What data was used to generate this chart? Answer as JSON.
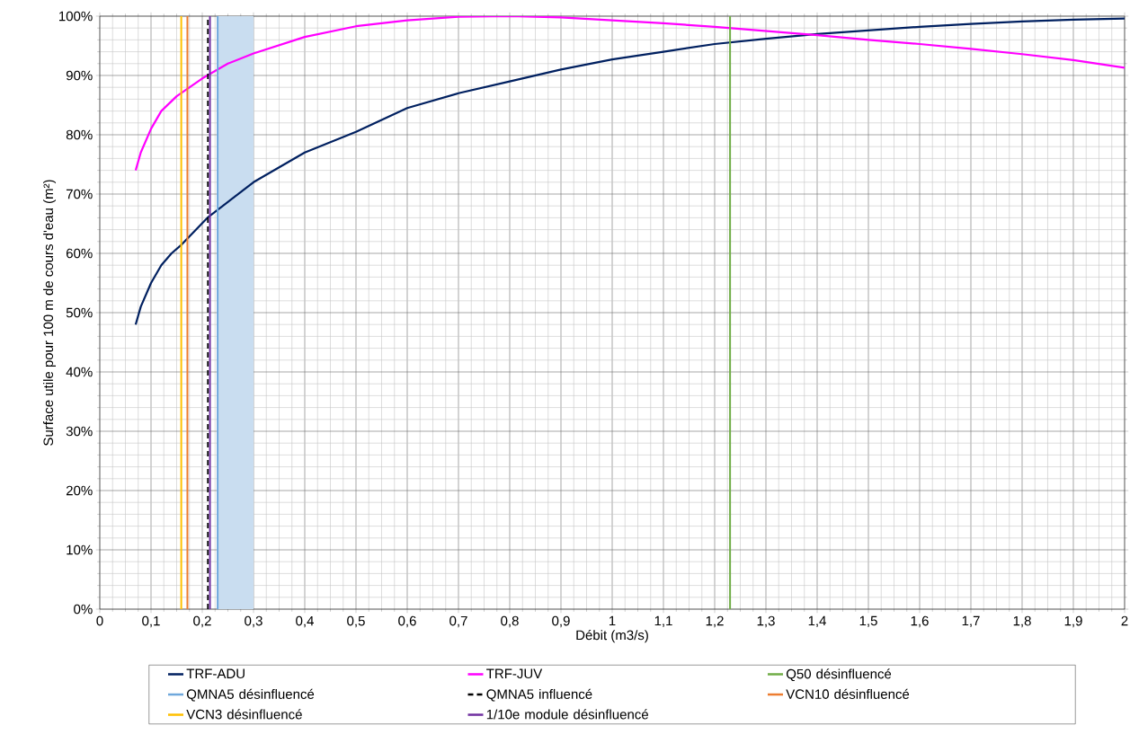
{
  "chart_data": {
    "type": "line",
    "xlabel": "Débit (m3/s)",
    "ylabel": "Surface utile pour 100 m de cours d'eau (m²)",
    "xlim": [
      0,
      2
    ],
    "ylim": [
      0,
      100
    ],
    "xticks": [
      0,
      {
        "value": 0.1,
        "label": "0,1"
      },
      {
        "value": 0.2,
        "label": "0,2"
      },
      {
        "value": 0.3,
        "label": "0,3"
      },
      {
        "value": 0.4,
        "label": "0,4"
      },
      {
        "value": 0.5,
        "label": "0,5"
      },
      {
        "value": 0.6,
        "label": "0,6"
      },
      {
        "value": 0.7,
        "label": "0,7"
      },
      {
        "value": 0.8,
        "label": "0,8"
      },
      {
        "value": 0.9,
        "label": "0,9"
      },
      1,
      {
        "value": 1.1,
        "label": "1,1"
      },
      {
        "value": 1.2,
        "label": "1,2"
      },
      {
        "value": 1.3,
        "label": "1,3"
      },
      {
        "value": 1.4,
        "label": "1,4"
      },
      {
        "value": 1.5,
        "label": "1,5"
      },
      {
        "value": 1.6,
        "label": "1,6"
      },
      {
        "value": 1.7,
        "label": "1,7"
      },
      {
        "value": 1.8,
        "label": "1,8"
      },
      {
        "value": 1.9,
        "label": "1,9"
      },
      2
    ],
    "yticks": [
      {
        "value": 0,
        "label": "0%"
      },
      {
        "value": 10,
        "label": "10%"
      },
      {
        "value": 20,
        "label": "20%"
      },
      {
        "value": 30,
        "label": "30%"
      },
      {
        "value": 40,
        "label": "40%"
      },
      {
        "value": 50,
        "label": "50%"
      },
      {
        "value": 60,
        "label": "60%"
      },
      {
        "value": 70,
        "label": "70%"
      },
      {
        "value": 80,
        "label": "80%"
      },
      {
        "value": 90,
        "label": "90%"
      },
      {
        "value": 100,
        "label": "100%"
      }
    ],
    "grid": true,
    "legend": "bottom",
    "series": [
      {
        "name": "TRF-ADU",
        "color": "#002060",
        "x": [
          0.07,
          0.08,
          0.1,
          0.12,
          0.14,
          0.16,
          0.21,
          0.3,
          0.4,
          0.5,
          0.6,
          0.7,
          0.8,
          0.9,
          1.0,
          1.1,
          1.2,
          1.3,
          1.4,
          1.5,
          1.6,
          1.7,
          1.8,
          1.9,
          2.0
        ],
        "values": [
          48,
          51,
          55,
          58,
          60,
          61.5,
          66,
          72,
          77,
          80.5,
          84.5,
          87,
          89,
          91,
          92.7,
          94,
          95.3,
          96.2,
          97,
          97.6,
          98.2,
          98.7,
          99.1,
          99.4,
          99.6
        ]
      },
      {
        "name": "TRF-JUV",
        "color": "#ff00ff",
        "x": [
          0.07,
          0.08,
          0.1,
          0.12,
          0.15,
          0.2,
          0.25,
          0.3,
          0.4,
          0.5,
          0.6,
          0.7,
          0.8,
          0.9,
          1.0,
          1.1,
          1.2,
          1.3,
          1.4,
          1.5,
          1.6,
          1.7,
          1.8,
          1.9,
          2.0
        ],
        "values": [
          74,
          77,
          81,
          84,
          86.5,
          89.5,
          92,
          93.7,
          96.5,
          98.3,
          99.3,
          99.9,
          100,
          99.8,
          99.3,
          98.8,
          98.2,
          97.5,
          96.8,
          96,
          95.3,
          94.5,
          93.6,
          92.6,
          91.3
        ]
      }
    ],
    "bands": [
      {
        "axis": "x",
        "from": 0.23,
        "to": 0.3,
        "color": "#c9ddf0"
      }
    ],
    "ref_lines": [
      {
        "axis": "x",
        "value": 1.23,
        "label": "Q50 désinfluencé",
        "color": "#70ad47"
      },
      {
        "axis": "x",
        "value": 0.23,
        "label": "QMNA5 désinfluencé",
        "color": "#6fa8dc"
      },
      {
        "axis": "x",
        "value": 0.211,
        "label": "QMNA5 influencé",
        "color": "#000000",
        "line_style": "dashed"
      },
      {
        "axis": "x",
        "value": 0.171,
        "label": "VCN10 désinfluencé",
        "color": "#ed7d31"
      },
      {
        "axis": "x",
        "value": 0.159,
        "label": "VCN3 désinfluencé",
        "color": "#ffc000"
      },
      {
        "axis": "x",
        "value": 0.215,
        "label": "1/10e module désinfluencé",
        "color": "#7030a0"
      }
    ]
  }
}
